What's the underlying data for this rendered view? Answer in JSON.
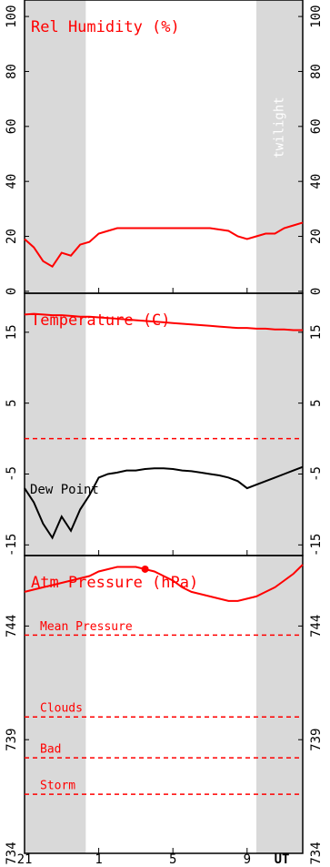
{
  "x_axis": {
    "xlim": [
      21,
      36
    ],
    "xticks": [
      {
        "value": 21,
        "label": "21"
      },
      {
        "value": 25,
        "label": "1"
      },
      {
        "value": 29,
        "label": "5"
      },
      {
        "value": 33,
        "label": "9"
      }
    ],
    "label": "UT"
  },
  "twilight": {
    "label": "twilight",
    "regions": [
      [
        21,
        24.3
      ],
      [
        33.5,
        36
      ]
    ]
  },
  "chart_data": [
    {
      "type": "line",
      "title": "Rel Humidity (%)",
      "color": "#ff0000",
      "x": [
        21,
        21.5,
        22,
        22.5,
        23,
        23.5,
        24,
        24.5,
        25,
        25.5,
        26,
        26.5,
        27,
        27.5,
        28,
        28.5,
        29,
        29.5,
        30,
        30.5,
        31,
        31.5,
        32,
        32.5,
        33,
        33.5,
        34,
        34.5,
        35,
        35.5,
        36
      ],
      "values": [
        19,
        16,
        11,
        9,
        14,
        13,
        17,
        18,
        21,
        22,
        23,
        23,
        23,
        23,
        23,
        23,
        23,
        23,
        23,
        23,
        23,
        22.5,
        22,
        20,
        19,
        20,
        21,
        21,
        23,
        24,
        25
      ],
      "ylim": [
        -0.7,
        106
      ],
      "yticks": [
        0,
        20,
        40,
        60,
        80,
        100
      ]
    },
    {
      "type": "line",
      "title": "Temperature (C)",
      "x": [
        21,
        21.5,
        22,
        22.5,
        23,
        23.5,
        24,
        24.5,
        25,
        25.5,
        26,
        26.5,
        27,
        27.5,
        28,
        28.5,
        29,
        29.5,
        30,
        30.5,
        31,
        31.5,
        32,
        32.5,
        33,
        33.5,
        34,
        34.5,
        35,
        35.5,
        36
      ],
      "series": [
        {
          "color": "#ff0000",
          "values": [
            17.5,
            17.6,
            17.5,
            17.4,
            17.4,
            17.3,
            17.2,
            17.2,
            17.1,
            17,
            16.9,
            16.8,
            16.7,
            16.6,
            16.5,
            16.4,
            16.3,
            16.2,
            16.1,
            16,
            15.9,
            15.8,
            15.7,
            15.6,
            15.6,
            15.5,
            15.5,
            15.4,
            15.4,
            15.3,
            15.3
          ]
        },
        {
          "name": "Dew Point",
          "color": "#000000",
          "values": [
            -7,
            -9,
            -12,
            -14,
            -11,
            -13,
            -10,
            -8,
            -5.5,
            -5,
            -4.8,
            -4.5,
            -4.5,
            -4.3,
            -4.2,
            -4.2,
            -4.3,
            -4.5,
            -4.6,
            -4.8,
            -5,
            -5.2,
            -5.5,
            -6,
            -7,
            -6.5,
            -6,
            -5.5,
            -5,
            -4.5,
            -4
          ]
        }
      ],
      "reference_lines": [
        {
          "value": 0
        }
      ],
      "ylim": [
        -16.5,
        20.5
      ],
      "yticks": [
        -15,
        -5,
        5,
        15
      ]
    },
    {
      "type": "line",
      "title": "Atm Pressure (hPa)",
      "color": "#ff0000",
      "x": [
        21,
        21.5,
        22,
        22.5,
        23,
        23.5,
        24,
        24.5,
        25,
        25.5,
        26,
        26.5,
        27,
        27.5,
        28,
        28.5,
        29,
        29.5,
        30,
        30.5,
        31,
        31.5,
        32,
        32.5,
        33,
        33.5,
        34,
        34.5,
        35,
        35.5,
        36
      ],
      "values": [
        745.5,
        745.6,
        745.7,
        745.8,
        745.9,
        746.0,
        746.1,
        746.2,
        746.4,
        746.5,
        746.6,
        746.6,
        746.6,
        746.5,
        746.4,
        746.2,
        746.0,
        745.7,
        745.5,
        745.4,
        745.3,
        745.2,
        745.1,
        745.1,
        745.2,
        745.3,
        745.5,
        745.7,
        746.0,
        746.3,
        746.7
      ],
      "highlight": {
        "x": 27.5,
        "value": 746.5
      },
      "reference_lines": [
        {
          "value": 743.6,
          "label": "Mean Pressure"
        },
        {
          "value": 740,
          "label": "Clouds"
        },
        {
          "value": 738.2,
          "label": "Bad"
        },
        {
          "value": 736.6,
          "label": "Storm"
        }
      ],
      "ylim": [
        734,
        747.1
      ],
      "yticks": [
        734,
        739,
        744
      ]
    }
  ]
}
